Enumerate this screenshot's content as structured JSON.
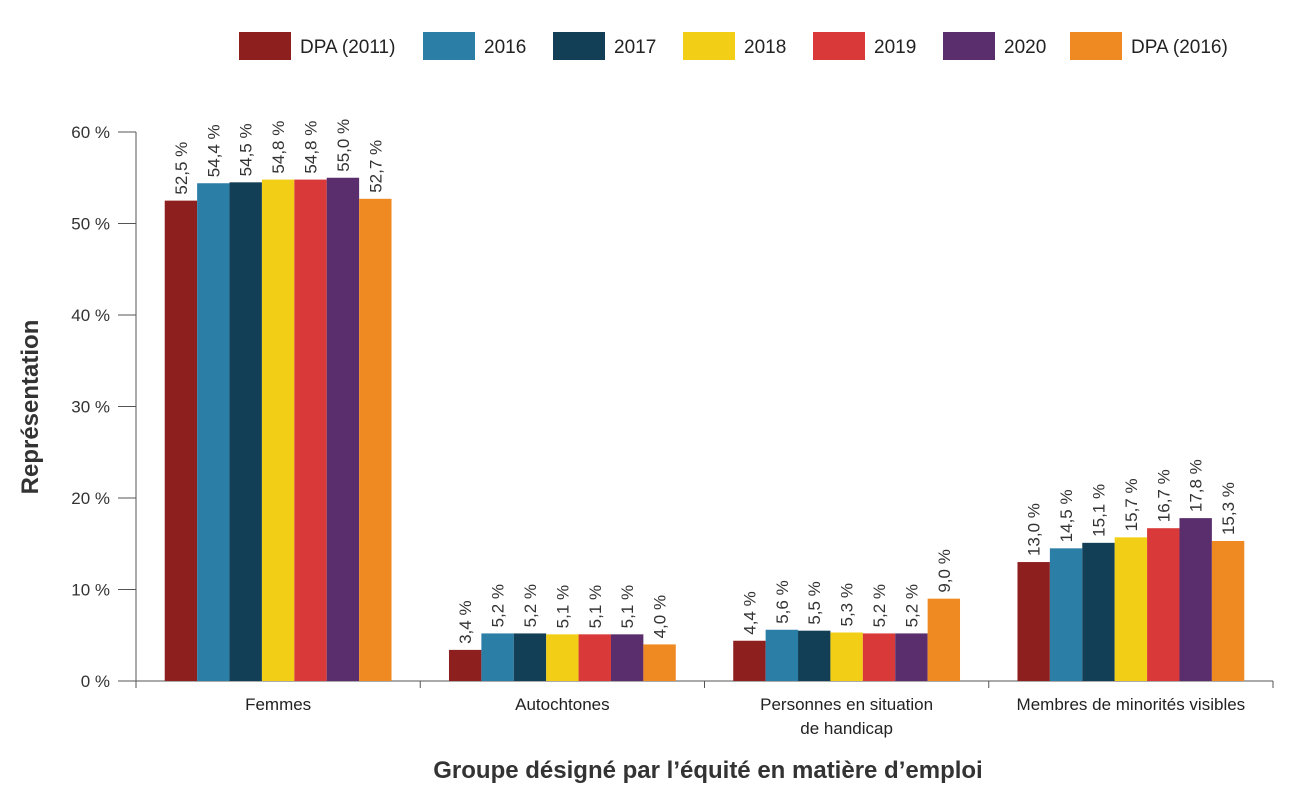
{
  "chart_data": {
    "type": "bar",
    "xlabel": "Groupe désigné par l’équité en matière d’emploi",
    "ylabel": "Représentation",
    "ylim": [
      0,
      60
    ],
    "y_ticks": [
      "0 %",
      "10 %",
      "20 %",
      "30 %",
      "40 %",
      "50 %",
      "60 %"
    ],
    "grid": false,
    "legend_position": "top",
    "categories": [
      [
        "Femmes"
      ],
      [
        "Autochtones"
      ],
      [
        "Personnes en situation",
        "de handicap"
      ],
      [
        "Membres de minorités visibles"
      ]
    ],
    "series": [
      {
        "name": "DPA (2011)",
        "color": "#8e1f1f",
        "values": [
          52.5,
          3.4,
          4.4,
          13.0
        ],
        "labels": [
          "52,5 %",
          "3,4 %",
          "4,4 %",
          "13,0 %"
        ]
      },
      {
        "name": "2016",
        "color": "#2b7ea6",
        "values": [
          54.4,
          5.2,
          5.6,
          14.5
        ],
        "labels": [
          "54,4 %",
          "5,2 %",
          "5,6 %",
          "14,5 %"
        ]
      },
      {
        "name": "2017",
        "color": "#133f56",
        "values": [
          54.5,
          5.2,
          5.5,
          15.1
        ],
        "labels": [
          "54,5 %",
          "5,2 %",
          "5,5 %",
          "15,1 %"
        ]
      },
      {
        "name": "2018",
        "color": "#f2cf16",
        "values": [
          54.8,
          5.1,
          5.3,
          15.7
        ],
        "labels": [
          "54,8 %",
          "5,1 %",
          "5,3 %",
          "15,7 %"
        ]
      },
      {
        "name": "2019",
        "color": "#d93a39",
        "values": [
          54.8,
          5.1,
          5.2,
          16.7
        ],
        "labels": [
          "54,8 %",
          "5,1 %",
          "5,2 %",
          "16,7 %"
        ]
      },
      {
        "name": "2020",
        "color": "#5a2d6c",
        "values": [
          55.0,
          5.1,
          5.2,
          17.8
        ],
        "labels": [
          "55,0 %",
          "5,1 %",
          "5,2 %",
          "17,8 %"
        ]
      },
      {
        "name": "DPA (2016)",
        "color": "#ef8a22",
        "values": [
          52.7,
          4.0,
          9.0,
          15.3
        ],
        "labels": [
          "52,7 %",
          "4,0 %",
          "9,0 %",
          "15,3 %"
        ]
      }
    ]
  }
}
